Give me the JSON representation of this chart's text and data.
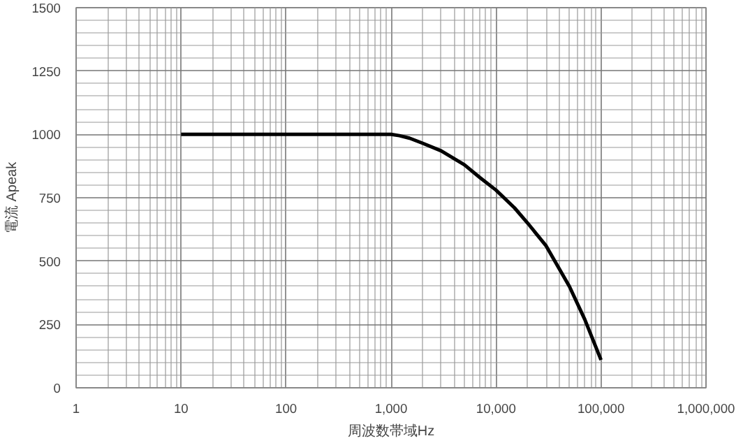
{
  "chart_data": {
    "type": "line",
    "xlabel": "周波数帯域Hz",
    "ylabel": "電流 Apeak",
    "x": [
      10,
      100,
      1000,
      1200,
      1500,
      2000,
      3000,
      5000,
      7000,
      10000,
      15000,
      20000,
      30000,
      50000,
      70000,
      100000
    ],
    "series": [
      {
        "color": "#000000",
        "values": [
          1000,
          1000,
          1000,
          995,
          985,
          965,
          935,
          880,
          830,
          780,
          710,
          650,
          560,
          400,
          270,
          110
        ]
      }
    ],
    "log": "x",
    "xlim": [
      1,
      1000000
    ],
    "xticks": [
      1,
      10,
      100,
      {
        "value": 1000,
        "label": "1,000"
      },
      {
        "value": 10000,
        "label": "10,000"
      },
      {
        "value": 100000,
        "label": "100,000"
      },
      {
        "value": 1000000,
        "label": "1,000,000"
      }
    ],
    "ylim": [
      0,
      1500
    ],
    "yticks": [
      0,
      250,
      500,
      750,
      1000,
      1250,
      1500
    ],
    "grid": true,
    "marker": "none",
    "line_style": "solid"
  }
}
